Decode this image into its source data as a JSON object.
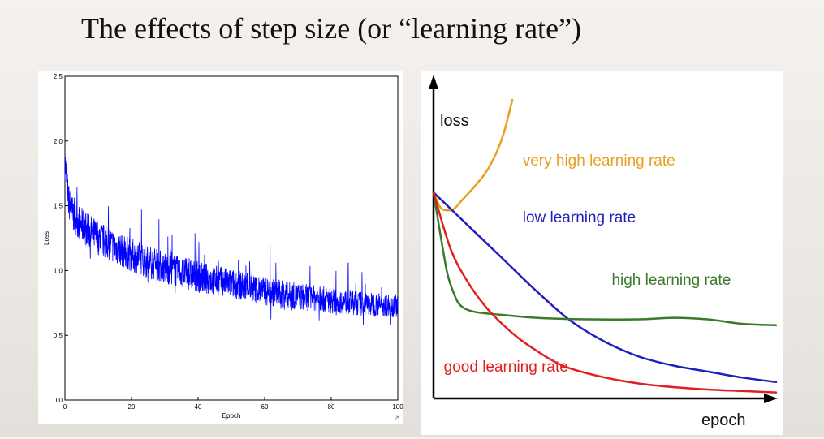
{
  "slide": {
    "title": "The effects of step size (or “learning rate”)"
  },
  "chart_data": [
    {
      "type": "line",
      "xlabel": "Epoch",
      "ylabel": "Loss",
      "xlim": [
        0,
        100
      ],
      "ylim": [
        0,
        2.5
      ],
      "x_ticks": [
        "0",
        "20",
        "40",
        "60",
        "80",
        "100"
      ],
      "y_ticks": [
        "0.0",
        "0.5",
        "1.0",
        "1.5",
        "2.0",
        "2.5"
      ],
      "grid": false,
      "series": [
        {
          "color": "#0000ff",
          "noisy": true,
          "x": [
            0,
            1,
            2,
            5,
            10,
            20,
            30,
            40,
            50,
            60,
            70,
            80,
            90,
            100
          ],
          "values": [
            1.85,
            1.55,
            1.45,
            1.35,
            1.25,
            1.12,
            1.02,
            0.95,
            0.9,
            0.84,
            0.8,
            0.77,
            0.74,
            0.73
          ]
        }
      ]
    },
    {
      "type": "line",
      "xlabel": "epoch",
      "ylabel": "loss",
      "xlim": [
        0,
        100
      ],
      "ylim": [
        0,
        100
      ],
      "grid": false,
      "series": [
        {
          "name": "very high learning rate",
          "color": "#e8a020",
          "label_pos": [
            26,
            78
          ],
          "x": [
            0,
            2,
            4,
            6,
            8,
            12,
            16,
            20,
            23
          ],
          "values": [
            69,
            64,
            63,
            63.5,
            66,
            71,
            77,
            87,
            100
          ]
        },
        {
          "name": "low learning rate",
          "color": "#1f1fbf",
          "label_pos": [
            26,
            59
          ],
          "x": [
            0,
            10,
            20,
            30,
            40,
            50,
            60,
            70,
            80,
            90,
            100
          ],
          "values": [
            69,
            58,
            47,
            36,
            26,
            19,
            14,
            11,
            9,
            7,
            5.5
          ]
        },
        {
          "name": "high learning rate",
          "color": "#3a7a2a",
          "label_pos": [
            52,
            38
          ],
          "x": [
            0,
            2,
            4,
            6,
            8,
            12,
            20,
            30,
            45,
            60,
            70,
            80,
            90,
            100
          ],
          "values": [
            69,
            55,
            42,
            35,
            31,
            29,
            28,
            27,
            26.5,
            26.5,
            27,
            26.5,
            25,
            24.5
          ]
        },
        {
          "name": "good learning rate",
          "color": "#e02020",
          "label_pos": [
            3,
            9
          ],
          "x": [
            0,
            5,
            10,
            15,
            20,
            25,
            30,
            35,
            40,
            50,
            60,
            70,
            80,
            90,
            100
          ],
          "values": [
            69,
            50,
            39,
            31,
            25,
            20,
            16,
            12.5,
            10,
            7,
            5,
            3.8,
            3,
            2.5,
            2
          ]
        }
      ]
    }
  ]
}
